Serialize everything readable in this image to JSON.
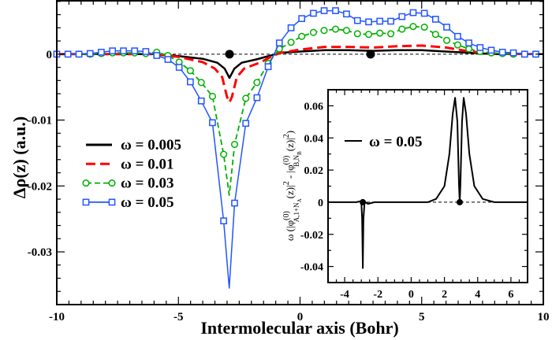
{
  "chart_data": [
    {
      "type": "line",
      "title": "",
      "xlabel": "Intermolecular axis (Bohr)",
      "ylabel": "Δρ(z) (a.u.)",
      "xlim": [
        -10,
        10
      ],
      "ylim": [
        -0.038,
        0.0081
      ],
      "xticks": [
        -10,
        -5,
        0,
        5,
        10
      ],
      "xtick_labels": [
        "-10",
        "-5",
        "0",
        "5",
        "10"
      ],
      "yticks": [
        0,
        -0.01,
        -0.02,
        -0.03
      ],
      "ytick_labels": [
        "0",
        "-0.01",
        "-0.02",
        "-0.03"
      ],
      "x_minor_step": 0.5,
      "y_minor_step": 0.002,
      "grid": false,
      "legend_placement": "center-left",
      "reference_line": {
        "y": 0,
        "style": "dashed"
      },
      "nuclei_x": [
        -2.9,
        2.9
      ],
      "series": [
        {
          "name": "ω = 0.005",
          "label": "ω = 0.005",
          "color": "#000000",
          "style": "solid",
          "marker": "none",
          "x": [
            -10,
            -6,
            -5,
            -4,
            -3.4,
            -3.1,
            -2.9,
            -2.7,
            -2.4,
            -1.8,
            -1.2,
            -0.8,
            0,
            1,
            2,
            3,
            4,
            5,
            6,
            7,
            8,
            10
          ],
          "y": [
            0,
            0,
            -0.0003,
            -0.0007,
            -0.0013,
            -0.0022,
            -0.0036,
            -0.0022,
            -0.0013,
            -0.0008,
            -0.0002,
            0.0002,
            0.0004,
            0.0006,
            0.0006,
            0.0005,
            0.0006,
            0.0006,
            0.0004,
            0.0002,
            0,
            0
          ]
        },
        {
          "name": "ω = 0.01",
          "label": "ω = 0.01",
          "color": "#ff0000",
          "style": "dashed",
          "marker": "none",
          "x": [
            -10,
            -6,
            -5,
            -4,
            -3.5,
            -3.2,
            -3.0,
            -2.9,
            -2.8,
            -2.6,
            -2.3,
            -1.6,
            -1.1,
            -0.8,
            0,
            1,
            2,
            3,
            4,
            5,
            6,
            7,
            8,
            10
          ],
          "y": [
            0,
            0,
            -0.0004,
            -0.0012,
            -0.0022,
            -0.0035,
            -0.0065,
            -0.0073,
            -0.0065,
            -0.0035,
            -0.0022,
            -0.0012,
            -0.0002,
            0.0002,
            0.0007,
            0.0011,
            0.0011,
            0.001,
            0.0012,
            0.0013,
            0.001,
            0.0004,
            0.0001,
            0
          ]
        },
        {
          "name": "ω = 0.03",
          "label": "ω = 0.03",
          "color": "#00b000",
          "style": "dashed",
          "marker": "circle",
          "x": [
            -10,
            -9.54,
            -9.09,
            -8.63,
            -8.17,
            -7.71,
            -7.26,
            -6.8,
            -6.34,
            -5.89,
            -5.43,
            -4.97,
            -4.51,
            -4.06,
            -3.6,
            -3.14,
            -2.69,
            -2.23,
            -1.77,
            -1.31,
            -0.85,
            -0.37,
            0.07,
            0.55,
            0.99,
            1.46,
            1.91,
            2.36,
            2.82,
            3.28,
            3.73,
            4.19,
            4.65,
            5.11,
            5.57,
            6.03,
            6.48,
            6.94,
            7.4,
            7.86,
            8.32,
            8.77,
            9.23,
            9.69
          ],
          "y": [
            0,
            0,
            0,
            0,
            0.0001,
            0.0002,
            0.0002,
            0.0002,
            0.0001,
            0.0003,
            -0.0002,
            -0.0012,
            -0.0025,
            -0.0043,
            -0.0064,
            -0.0152,
            -0.0137,
            -0.0067,
            -0.0043,
            -0.0014,
            0.0008,
            0.0018,
            0.0027,
            0.0033,
            0.0036,
            0.0038,
            0.0036,
            0.0031,
            0.003,
            0.0032,
            0.0031,
            0.0038,
            0.0042,
            0.0041,
            0.003,
            0.0021,
            0.0014,
            0.0008,
            0.0004,
            0.0002,
            0.0001,
            0,
            0,
            0
          ],
          "minimum": {
            "x": -2.91,
            "y": -0.0214
          }
        },
        {
          "name": "ω = 0.05",
          "label": "ω = 0.05",
          "color": "#2255ff",
          "style": "solid",
          "marker": "square",
          "x": [
            -10,
            -9.54,
            -9.09,
            -8.63,
            -8.17,
            -7.71,
            -7.26,
            -6.8,
            -6.34,
            -5.89,
            -5.43,
            -4.97,
            -4.51,
            -4.06,
            -3.6,
            -3.14,
            -2.69,
            -2.23,
            -1.77,
            -1.31,
            -0.85,
            -0.37,
            0.07,
            0.55,
            0.99,
            1.46,
            1.91,
            2.36,
            2.82,
            3.28,
            3.73,
            4.19,
            4.65,
            5.11,
            5.57,
            6.03,
            6.48,
            6.94,
            7.4,
            7.86,
            8.32,
            8.77,
            9.23,
            9.69
          ],
          "y": [
            0,
            0,
            0,
            0.0001,
            0.0003,
            0.0005,
            0.0005,
            0.0005,
            0.0004,
            -0.0002,
            -0.0008,
            -0.002,
            -0.0042,
            -0.0071,
            -0.0104,
            -0.0253,
            -0.0226,
            -0.0105,
            -0.0066,
            -0.0019,
            0.0017,
            0.004,
            0.0054,
            0.0062,
            0.0066,
            0.0066,
            0.0061,
            0.0051,
            0.0049,
            0.005,
            0.005,
            0.0057,
            0.0063,
            0.0062,
            0.0053,
            0.0041,
            0.0027,
            0.0017,
            0.001,
            0.0006,
            0.0003,
            0.0002,
            0,
            0
          ],
          "minimum": {
            "x": -2.91,
            "y": -0.0355
          }
        }
      ]
    },
    {
      "type": "line",
      "title": "",
      "xlabel": "",
      "ylabel_parts": [
        "ω (|φ",
        "(0)",
        "A,1+N",
        "A",
        "(z)|",
        "2",
        " - |φ",
        "(0)",
        "B,N",
        "B",
        "(z)|",
        "2",
        ")"
      ],
      "xlim": [
        -5,
        7
      ],
      "ylim": [
        -0.05,
        0.07
      ],
      "xticks": [
        -4,
        -2,
        0,
        2,
        4,
        6
      ],
      "xtick_labels": [
        "-4",
        "-2",
        "0",
        "2",
        "4",
        "6"
      ],
      "yticks": [
        0.06,
        0.04,
        0.02,
        0,
        -0.02,
        -0.04
      ],
      "ytick_labels": [
        "0.06",
        "0.04",
        "0.02",
        "0",
        "-0.02",
        "-0.04"
      ],
      "x_minor_step": 0.5,
      "y_minor_step": 0.01,
      "grid": false,
      "legend_placement": "top-left",
      "reference_line": {
        "y": 0,
        "style": "dashed"
      },
      "nuclei_x": [
        -2.91,
        2.92
      ],
      "series": [
        {
          "name": "ω = 0.05",
          "label": "ω = 0.05",
          "color": "#000000",
          "style": "solid",
          "marker": "none",
          "x": [
            -5,
            -3.3,
            -3.1,
            -3.0,
            -2.95,
            -2.91,
            -2.87,
            -2.8,
            -2.6,
            -2.2,
            1,
            1.5,
            2,
            2.3,
            2.5,
            2.64,
            2.78,
            2.88,
            2.92,
            2.96,
            3.06,
            3.16,
            3.3,
            3.5,
            3.8,
            4.3,
            5,
            7
          ],
          "y": [
            0,
            0,
            0.0005,
            0.0002,
            -0.01,
            -0.041,
            -0.01,
            0.0002,
            -0.001,
            0,
            0,
            0.002,
            0.01,
            0.03,
            0.055,
            0.065,
            0.05,
            0.01,
            0,
            0.01,
            0.05,
            0.065,
            0.055,
            0.03,
            0.01,
            0.002,
            0,
            0
          ]
        }
      ]
    }
  ]
}
